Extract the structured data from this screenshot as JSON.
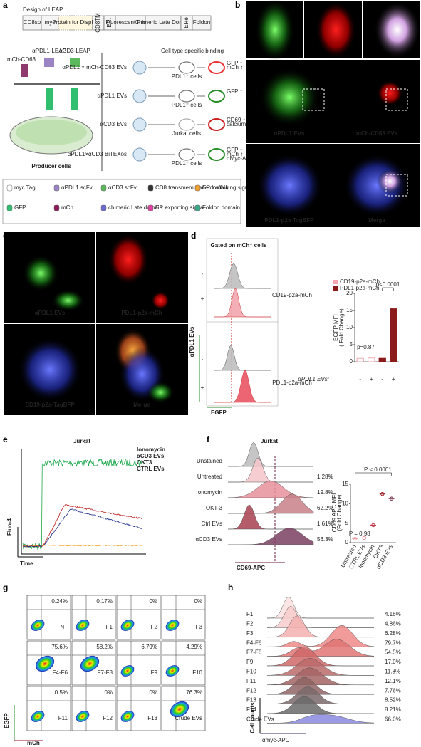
{
  "letters": [
    "a",
    "b",
    "c",
    "d",
    "e",
    "f",
    "g",
    "h"
  ],
  "a": {
    "title": "Design of LEAP",
    "construct": [
      "CD8sp",
      "myc",
      "Protein for Display",
      "CD8TM",
      "ERt",
      "Fluorescent Protein",
      "Chimeric Late Domain",
      "ERe",
      "Foldon"
    ],
    "proteins": [
      "mCh-CD63",
      "αPDL1-LEAP",
      "αCD3-LEAP"
    ],
    "producer": "Producer cells",
    "binding": "Cell type specific binding",
    "rows": [
      {
        "ev": "αPDL1 × mCh-CD63 EVs",
        "target": "PDL1⁺ cells",
        "readout": [
          "GFP ↑",
          "mCh ↑"
        ]
      },
      {
        "ev": "αPDL1 EVs",
        "target": "PDL1⁺ cells",
        "readout": [
          "GFP ↑"
        ]
      },
      {
        "ev": "αCD3 EVs",
        "target": "Jurkat cells",
        "readout": [
          "CD69 ↑",
          "calcium ↑"
        ]
      },
      {
        "ev": "αPDL1×αCD3 BiTEXos",
        "target": "PDL1⁺ cells",
        "readout": [
          "GFP ↑",
          "mCh ↑",
          "αMyc-APC"
        ]
      }
    ],
    "legend": [
      "myc Tag",
      "αPDL1 scFv",
      "αCD3 scFv",
      "CD8 transmembrane domain",
      "ER trafficking signal",
      "GFP",
      "mCh",
      "chimeric Late domain",
      "ER exporting signal",
      "Foldon domain"
    ]
  },
  "b": [
    "αPDL1 EVs",
    "mCh-CD63 EVs",
    "PDL1-p2a-TagBFP",
    "Merge"
  ],
  "c": [
    "αPDL1 EVs",
    "PDL1-p2a-mCh",
    "CD19-p2a-TagBFP",
    "Merge"
  ],
  "d": {
    "gate": "Gated on mCh⁺ cells",
    "ylabel": "αPDL1 EVs",
    "xlabel": "EGFP",
    "signs": [
      "-",
      "+",
      "-",
      "+"
    ],
    "groups": [
      "CD19-p2a-mCh",
      "PDL1-p2a-mCh"
    ],
    "ev_label": "αPDL1 EVs:"
  },
  "chart_data": [
    {
      "type": "bar",
      "ylabel": "EGFP MFI\n( Fold Change)",
      "categories": [
        "-",
        "+",
        "-",
        "+"
      ],
      "series": [
        {
          "name": "CD19-p2a-mCh",
          "color": "#f4a7b0",
          "values": [
            1,
            1.1,
            null,
            null
          ]
        },
        {
          "name": "PDL1-p2a-mCh",
          "color": "#8b1a1a",
          "values": [
            null,
            null,
            1,
            15.5
          ]
        }
      ],
      "ylim": [
        0,
        20
      ],
      "yticks": [
        0,
        5,
        10,
        15,
        20
      ],
      "annotations": [
        "p=0.87",
        "p<0.0001"
      ]
    },
    {
      "type": "dot",
      "ylabel": "CD69 APC MFI\n(Fold Change)",
      "categories": [
        "Untreated",
        "CTRL EVs",
        "Ionomycin",
        "OKT3",
        "αCD3 EVs"
      ],
      "values": [
        1,
        1.2,
        4.5,
        12.5,
        11.3
      ],
      "colors": [
        "#f0a0a8",
        "#d98088",
        "#c03040",
        "#9b1c24",
        "#6a1a3a"
      ],
      "ylim": [
        0,
        15
      ],
      "yticks": [
        0,
        5,
        10,
        15
      ],
      "annotations": [
        "P = 0.98",
        "P < 0.0001"
      ]
    }
  ],
  "e": {
    "title": "Jurkat",
    "legend": [
      "Ionomycin",
      "αCD3 EVs",
      "OKT3",
      "CTRL EVs"
    ],
    "ylabel": "Fluo-4",
    "xlabel": "Time"
  },
  "f": {
    "title": "Jurkat",
    "rows": [
      "Unstained",
      "Untreated",
      "Ionomycin",
      "OKT-3",
      "Ctrl EVs",
      "αCD3 EVs"
    ],
    "pct": [
      "1.28%",
      "19.8%",
      "62.2%",
      "1.61%",
      "56.3%"
    ],
    "xlabel": "CD69-APC"
  },
  "g": {
    "names": [
      "NT",
      "F1",
      "F2",
      "F3",
      "F4-F6",
      "F7-F8",
      "F9",
      "F10",
      "F11",
      "F12",
      "F13",
      "Crude EVs"
    ],
    "pct": [
      "0.24%",
      "0.17%",
      "0%",
      "0%",
      "75.6%",
      "58.2%",
      "6.79%",
      "4.29%",
      "0.5%",
      "0%",
      "0%",
      "76.3%"
    ],
    "ylabel": "EGFP",
    "xlabel": "mCh"
  },
  "h": {
    "names": [
      "F1",
      "F2",
      "F3",
      "F4-F6",
      "F7-F8",
      "F9",
      "F10",
      "F11",
      "F12",
      "F13",
      "F14",
      "Crude EVs"
    ],
    "pct": [
      "4.16%",
      "4.86%",
      "6.28%",
      "79.7%",
      "54.5%",
      "17.0%",
      "11.8%",
      "12.1%",
      "7.76%",
      "8.52%",
      "8.21%",
      "66.0%"
    ],
    "ylabel": "Cell counts",
    "xlabel": "αmyc-APC"
  }
}
